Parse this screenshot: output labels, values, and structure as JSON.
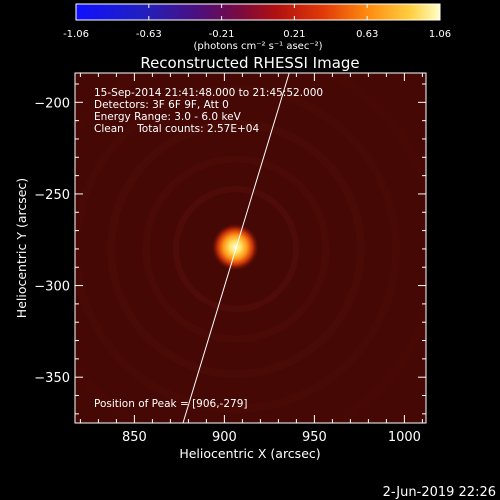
{
  "colorbar": {
    "ticks": [
      "-1.06",
      "-0.63",
      "-0.21",
      "0.21",
      "0.63",
      "1.06"
    ],
    "unit_label": "(photons cm⁻² s⁻¹ asec⁻²)"
  },
  "info": {
    "time_range": "15-Sep-2014 21:41:48.000 to 21:45:52.000",
    "detectors": "Detectors: 3F 6F 9F, Att 0",
    "energy": "Energy Range: 3.0 - 6.0 keV",
    "method_counts": "Clean    Total counts: 2.57E+04",
    "peak": "Position of Peak = [906,-279]"
  },
  "footer": {
    "date": "2-Jun-2019 22:26"
  },
  "chart_data": {
    "type": "heatmap",
    "title": "Reconstructed RHESSI Image",
    "xlabel": "Heliocentric X (arcsec)",
    "ylabel": "Heliocentric Y (arcsec)",
    "xlim": [
      817,
      1012
    ],
    "ylim": [
      -375,
      -184
    ],
    "xticks": [
      850,
      900,
      950,
      1000
    ],
    "yticks": [
      -200,
      -250,
      -300,
      -350
    ],
    "colormap": "hot",
    "color_range": [
      -1.06,
      1.06
    ],
    "peak": {
      "x": 906,
      "y": -279
    },
    "limb_line": [
      [
        877,
        -375
      ],
      [
        936,
        -184
      ]
    ],
    "colors": {
      "background": "#000000",
      "image_fill": "#4a0a06",
      "limb": "#ffffff"
    }
  }
}
